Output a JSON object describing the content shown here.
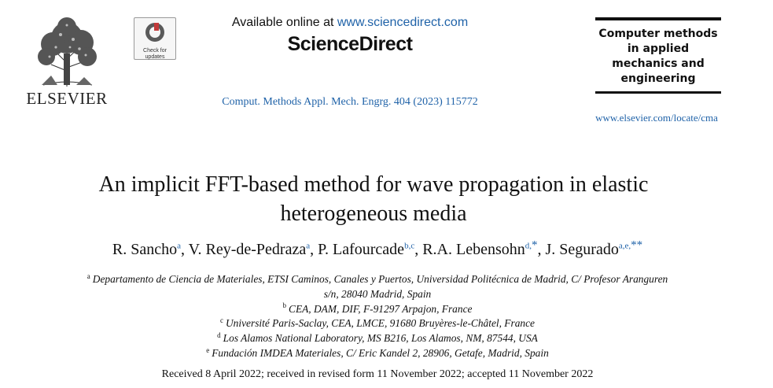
{
  "header": {
    "publisher": "ELSEVIER",
    "check_updates": "Check for updates",
    "available_online_prefix": "Available online at",
    "available_online_url": "www.sciencedirect.com",
    "platform": "ScienceDirect",
    "citation": "Comput. Methods Appl. Mech. Engrg. 404 (2023) 115772",
    "journal_title_lines": [
      "Computer methods",
      "in applied",
      "mechanics and",
      "engineering"
    ],
    "journal_url": "www.elsevier.com/locate/cma"
  },
  "article": {
    "title_line1": "An implicit FFT-based method for wave propagation in elastic",
    "title_line2": "heterogeneous media",
    "authors": [
      {
        "name": "R. Sancho",
        "marks": "a",
        "sep": ", "
      },
      {
        "name": "V. Rey-de-Pedraza",
        "marks": "a",
        "sep": ", "
      },
      {
        "name": "P. Lafourcade",
        "marks": "b,c",
        "sep": ", "
      },
      {
        "name": "R.A. Lebensohn",
        "marks": "d,",
        "star": "*",
        "sep": ", "
      },
      {
        "name": "J. Segurado",
        "marks": "a,e,",
        "star": "**",
        "sep": ""
      }
    ],
    "affiliations": [
      {
        "label": "a",
        "line1": "Departamento de Ciencia de Materiales, ETSI Caminos, Canales y Puertos, Universidad Politécnica de Madrid, C/ Profesor Aranguren",
        "line2": "s/n, 28040 Madrid, Spain"
      },
      {
        "label": "b",
        "line1": "CEA, DAM, DIF, F-91297 Arpajon, France"
      },
      {
        "label": "c",
        "line1": "Université Paris-Saclay, CEA, LMCE, 91680 Bruyères-le-Châtel, France"
      },
      {
        "label": "d",
        "line1": "Los Alamos National Laboratory, MS B216, Los Alamos, NM, 87544, USA"
      },
      {
        "label": "e",
        "line1": "Fundación IMDEA Materiales, C/ Eric Kandel 2, 28906, Getafe, Madrid, Spain"
      }
    ],
    "received": "Received 8 April 2022; received in revised form 11 November 2022; accepted 11 November 2022"
  }
}
